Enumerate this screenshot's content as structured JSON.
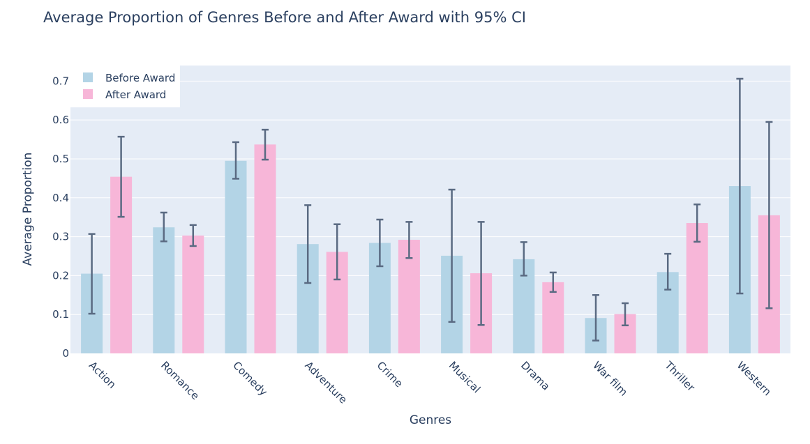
{
  "chart_data": {
    "type": "bar",
    "title": "Average Proportion of Genres Before and After Award with 95% CI",
    "xlabel": "Genres",
    "ylabel": "Average Proportion",
    "categories": [
      "Action",
      "Romance",
      "Comedy",
      "Adventure",
      "Crime",
      "Musical",
      "Drama",
      "War film",
      "Thriller",
      "Western"
    ],
    "ylim": [
      0,
      0.74
    ],
    "yticks": [
      0,
      0.1,
      0.2,
      0.3,
      0.4,
      0.5,
      0.6,
      0.7
    ],
    "ytick_labels": [
      "0",
      "0.1",
      "0.2",
      "0.3",
      "0.4",
      "0.5",
      "0.6",
      "0.7"
    ],
    "grid": true,
    "legend_position": "top-left",
    "series": [
      {
        "name": "Before Award",
        "color": "#b3d4e6",
        "values": [
          0.205,
          0.324,
          0.495,
          0.281,
          0.284,
          0.251,
          0.242,
          0.091,
          0.209,
          0.43
        ],
        "ci_low": [
          0.102,
          0.288,
          0.449,
          0.181,
          0.224,
          0.081,
          0.2,
          0.033,
          0.164,
          0.154
        ],
        "ci_high": [
          0.307,
          0.362,
          0.543,
          0.381,
          0.344,
          0.421,
          0.286,
          0.15,
          0.256,
          0.706
        ]
      },
      {
        "name": "After Award",
        "color": "#f7b6d8",
        "values": [
          0.454,
          0.303,
          0.537,
          0.261,
          0.292,
          0.206,
          0.183,
          0.101,
          0.335,
          0.355
        ],
        "ci_low": [
          0.351,
          0.276,
          0.498,
          0.19,
          0.245,
          0.073,
          0.158,
          0.072,
          0.287,
          0.116
        ],
        "ci_high": [
          0.557,
          0.33,
          0.575,
          0.332,
          0.338,
          0.338,
          0.208,
          0.129,
          0.383,
          0.595
        ]
      }
    ]
  }
}
